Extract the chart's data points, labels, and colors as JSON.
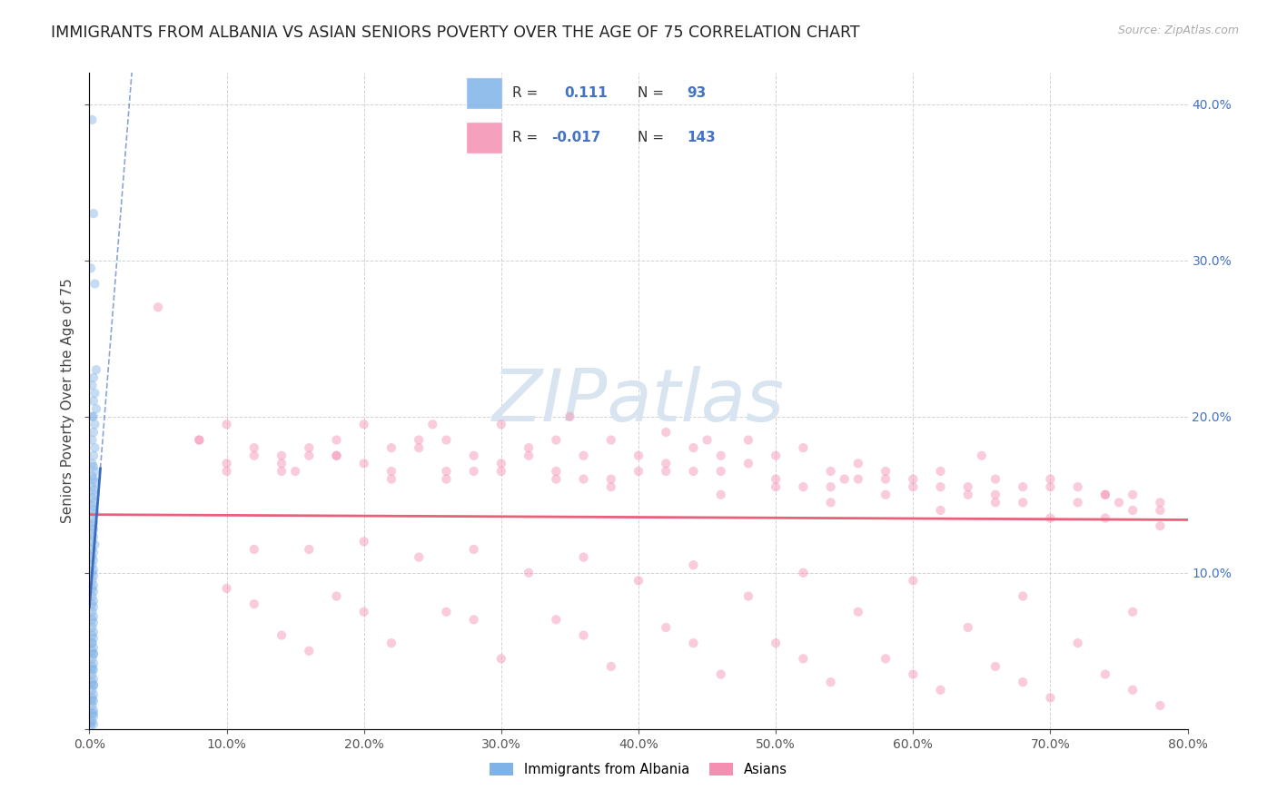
{
  "title": "IMMIGRANTS FROM ALBANIA VS ASIAN SENIORS POVERTY OVER THE AGE OF 75 CORRELATION CHART",
  "source": "Source: ZipAtlas.com",
  "ylabel": "Seniors Poverty Over the Age of 75",
  "xlim": [
    0.0,
    0.8
  ],
  "ylim": [
    0.0,
    0.42
  ],
  "xticks": [
    0.0,
    0.1,
    0.2,
    0.3,
    0.4,
    0.5,
    0.6,
    0.7,
    0.8
  ],
  "yticks": [
    0.0,
    0.1,
    0.2,
    0.3,
    0.4
  ],
  "albania_R": 0.111,
  "albania_N": 93,
  "asian_R": -0.017,
  "asian_N": 143,
  "albania_color": "#7fb3e8",
  "asian_color": "#f48fb1",
  "trendline_albania_color": "#3a6bbf",
  "trendline_asian_color": "#e8607a",
  "right_axis_color": "#4472c4",
  "grid_color": "#c8c8c8",
  "background_color": "#ffffff",
  "title_fontsize": 12.5,
  "axis_label_fontsize": 11,
  "tick_fontsize": 10,
  "scatter_size": 55,
  "scatter_alpha": 0.45,
  "legend_text_color_blue": "#4472c4",
  "watermark_color": "#d8e4f0",
  "albania_scatter_x": [
    0.002,
    0.003,
    0.001,
    0.004,
    0.005,
    0.003,
    0.002,
    0.004,
    0.003,
    0.005,
    0.003,
    0.002,
    0.004,
    0.003,
    0.002,
    0.004,
    0.003,
    0.002,
    0.003,
    0.004,
    0.002,
    0.003,
    0.004,
    0.002,
    0.003,
    0.004,
    0.002,
    0.003,
    0.002,
    0.003,
    0.004,
    0.002,
    0.003,
    0.002,
    0.003,
    0.002,
    0.003,
    0.002,
    0.004,
    0.002,
    0.003,
    0.002,
    0.003,
    0.002,
    0.003,
    0.002,
    0.003,
    0.002,
    0.003,
    0.002,
    0.003,
    0.002,
    0.003,
    0.002,
    0.003,
    0.002,
    0.003,
    0.002,
    0.003,
    0.002,
    0.003,
    0.002,
    0.003,
    0.002,
    0.003,
    0.002,
    0.003,
    0.002,
    0.003,
    0.002,
    0.003,
    0.002,
    0.003,
    0.002,
    0.003,
    0.002,
    0.003,
    0.002,
    0.003,
    0.002,
    0.003,
    0.002,
    0.003,
    0.002,
    0.003,
    0.002,
    0.003,
    0.002,
    0.003,
    0.002,
    0.003,
    0.001,
    0.001
  ],
  "albania_scatter_y": [
    0.39,
    0.33,
    0.295,
    0.285,
    0.23,
    0.225,
    0.22,
    0.215,
    0.21,
    0.205,
    0.2,
    0.2,
    0.195,
    0.19,
    0.185,
    0.18,
    0.175,
    0.17,
    0.168,
    0.165,
    0.162,
    0.16,
    0.158,
    0.155,
    0.153,
    0.15,
    0.148,
    0.145,
    0.143,
    0.14,
    0.138,
    0.135,
    0.132,
    0.13,
    0.128,
    0.125,
    0.123,
    0.12,
    0.118,
    0.115,
    0.113,
    0.11,
    0.108,
    0.105,
    0.102,
    0.1,
    0.098,
    0.095,
    0.092,
    0.09,
    0.088,
    0.085,
    0.082,
    0.08,
    0.078,
    0.075,
    0.072,
    0.07,
    0.068,
    0.065,
    0.062,
    0.06,
    0.058,
    0.055,
    0.052,
    0.05,
    0.048,
    0.045,
    0.042,
    0.04,
    0.038,
    0.035,
    0.032,
    0.03,
    0.028,
    0.025,
    0.022,
    0.02,
    0.018,
    0.015,
    0.012,
    0.01,
    0.008,
    0.005,
    0.003,
    0.055,
    0.048,
    0.038,
    0.028,
    0.018,
    0.01,
    0.004,
    0.002
  ],
  "asian_scatter_x": [
    0.05,
    0.08,
    0.1,
    0.12,
    0.14,
    0.15,
    0.16,
    0.18,
    0.2,
    0.22,
    0.24,
    0.25,
    0.26,
    0.28,
    0.3,
    0.32,
    0.34,
    0.35,
    0.36,
    0.38,
    0.4,
    0.42,
    0.44,
    0.45,
    0.46,
    0.48,
    0.5,
    0.52,
    0.54,
    0.55,
    0.56,
    0.58,
    0.6,
    0.62,
    0.64,
    0.65,
    0.66,
    0.68,
    0.7,
    0.72,
    0.74,
    0.75,
    0.76,
    0.78,
    0.1,
    0.14,
    0.18,
    0.22,
    0.26,
    0.3,
    0.34,
    0.38,
    0.42,
    0.46,
    0.5,
    0.54,
    0.58,
    0.62,
    0.66,
    0.7,
    0.74,
    0.78,
    0.08,
    0.16,
    0.24,
    0.32,
    0.4,
    0.48,
    0.56,
    0.64,
    0.72,
    0.12,
    0.2,
    0.28,
    0.36,
    0.44,
    0.52,
    0.6,
    0.68,
    0.76,
    0.1,
    0.18,
    0.26,
    0.34,
    0.42,
    0.5,
    0.58,
    0.66,
    0.74,
    0.14,
    0.22,
    0.3,
    0.38,
    0.46,
    0.54,
    0.62,
    0.7,
    0.78,
    0.12,
    0.2,
    0.28,
    0.36,
    0.44,
    0.52,
    0.6,
    0.68,
    0.76,
    0.16,
    0.24,
    0.32,
    0.4,
    0.48,
    0.56,
    0.64,
    0.72,
    0.1,
    0.18,
    0.26,
    0.34,
    0.42,
    0.5,
    0.58,
    0.66,
    0.74,
    0.12,
    0.2,
    0.28,
    0.36,
    0.44,
    0.52,
    0.6,
    0.68,
    0.76,
    0.14,
    0.22,
    0.3,
    0.38,
    0.46,
    0.54,
    0.62,
    0.7,
    0.78,
    0.16
  ],
  "asian_scatter_y": [
    0.27,
    0.185,
    0.195,
    0.18,
    0.175,
    0.165,
    0.18,
    0.185,
    0.195,
    0.18,
    0.185,
    0.195,
    0.185,
    0.175,
    0.195,
    0.18,
    0.185,
    0.2,
    0.175,
    0.185,
    0.175,
    0.19,
    0.18,
    0.185,
    0.175,
    0.185,
    0.175,
    0.18,
    0.165,
    0.16,
    0.17,
    0.165,
    0.16,
    0.165,
    0.155,
    0.175,
    0.16,
    0.155,
    0.16,
    0.155,
    0.15,
    0.145,
    0.15,
    0.145,
    0.165,
    0.17,
    0.175,
    0.165,
    0.16,
    0.17,
    0.165,
    0.16,
    0.17,
    0.165,
    0.16,
    0.155,
    0.16,
    0.155,
    0.15,
    0.155,
    0.15,
    0.14,
    0.185,
    0.175,
    0.18,
    0.175,
    0.165,
    0.17,
    0.16,
    0.15,
    0.145,
    0.175,
    0.17,
    0.165,
    0.16,
    0.165,
    0.155,
    0.155,
    0.145,
    0.14,
    0.17,
    0.175,
    0.165,
    0.16,
    0.165,
    0.155,
    0.15,
    0.145,
    0.135,
    0.165,
    0.16,
    0.165,
    0.155,
    0.15,
    0.145,
    0.14,
    0.135,
    0.13,
    0.115,
    0.12,
    0.115,
    0.11,
    0.105,
    0.1,
    0.095,
    0.085,
    0.075,
    0.115,
    0.11,
    0.1,
    0.095,
    0.085,
    0.075,
    0.065,
    0.055,
    0.09,
    0.085,
    0.075,
    0.07,
    0.065,
    0.055,
    0.045,
    0.04,
    0.035,
    0.08,
    0.075,
    0.07,
    0.06,
    0.055,
    0.045,
    0.035,
    0.03,
    0.025,
    0.06,
    0.055,
    0.045,
    0.04,
    0.035,
    0.03,
    0.025,
    0.02,
    0.015,
    0.05
  ]
}
